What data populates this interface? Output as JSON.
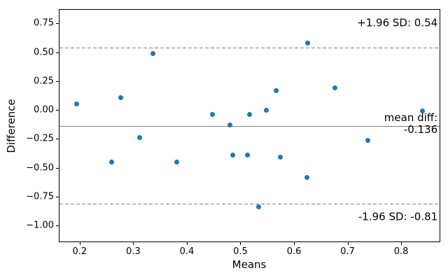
{
  "chart_data": {
    "type": "scatter",
    "title": "",
    "xlabel": "Means",
    "ylabel": "Difference",
    "xlim": [
      0.161,
      0.873
    ],
    "ylim": [
      -1.143,
      0.873
    ],
    "grid": false,
    "point_color": "#1f77b4",
    "line_color": "#808080",
    "x_ticks": [
      {
        "label": "0.2",
        "value": 0.2
      },
      {
        "label": "0.3",
        "value": 0.3
      },
      {
        "label": "0.4",
        "value": 0.4
      },
      {
        "label": "0.5",
        "value": 0.5
      },
      {
        "label": "0.6",
        "value": 0.6
      },
      {
        "label": "0.7",
        "value": 0.7
      },
      {
        "label": "0.8",
        "value": 0.8
      }
    ],
    "y_ticks": [
      {
        "label": "0.75",
        "value": 0.75
      },
      {
        "label": "0.50",
        "value": 0.5
      },
      {
        "label": "0.25",
        "value": 0.25
      },
      {
        "label": "0.00",
        "value": 0.0
      },
      {
        "label": "−0.25",
        "value": -0.25
      },
      {
        "label": "−0.50",
        "value": -0.5
      },
      {
        "label": "−0.75",
        "value": -0.75
      },
      {
        "label": "−1.00",
        "value": -1.0
      }
    ],
    "points": [
      [
        0.194,
        0.05
      ],
      [
        0.259,
        -0.45
      ],
      [
        0.276,
        0.11
      ],
      [
        0.312,
        -0.24
      ],
      [
        0.337,
        0.49
      ],
      [
        0.381,
        -0.45
      ],
      [
        0.448,
        -0.04
      ],
      [
        0.481,
        -0.13
      ],
      [
        0.485,
        -0.39
      ],
      [
        0.513,
        -0.39
      ],
      [
        0.517,
        -0.04
      ],
      [
        0.534,
        -0.84
      ],
      [
        0.548,
        0.0
      ],
      [
        0.566,
        0.17
      ],
      [
        0.575,
        -0.41
      ],
      [
        0.624,
        -0.58
      ],
      [
        0.625,
        0.58
      ],
      [
        0.677,
        0.19
      ],
      [
        0.738,
        -0.26
      ],
      [
        0.84,
        -0.01
      ]
    ],
    "lines": [
      {
        "name": "upper-loa-line",
        "y": 0.54,
        "style": "dashed"
      },
      {
        "name": "mean-diff-line",
        "y": -0.136,
        "style": "solid"
      },
      {
        "name": "lower-loa-line",
        "y": -0.81,
        "style": "dashed"
      }
    ],
    "annotations": [
      {
        "name": "upper-loa-annotation",
        "text": "+1.96 SD: 0.54",
        "x": 0.868,
        "y": 0.751
      },
      {
        "name": "mean-diff-annotation",
        "text": "mean diff:\n-0.136",
        "x": 0.868,
        "y": -0.119
      },
      {
        "name": "lower-loa-annotation",
        "text": "-1.96 SD: -0.81",
        "x": 0.868,
        "y": -0.928
      }
    ]
  }
}
